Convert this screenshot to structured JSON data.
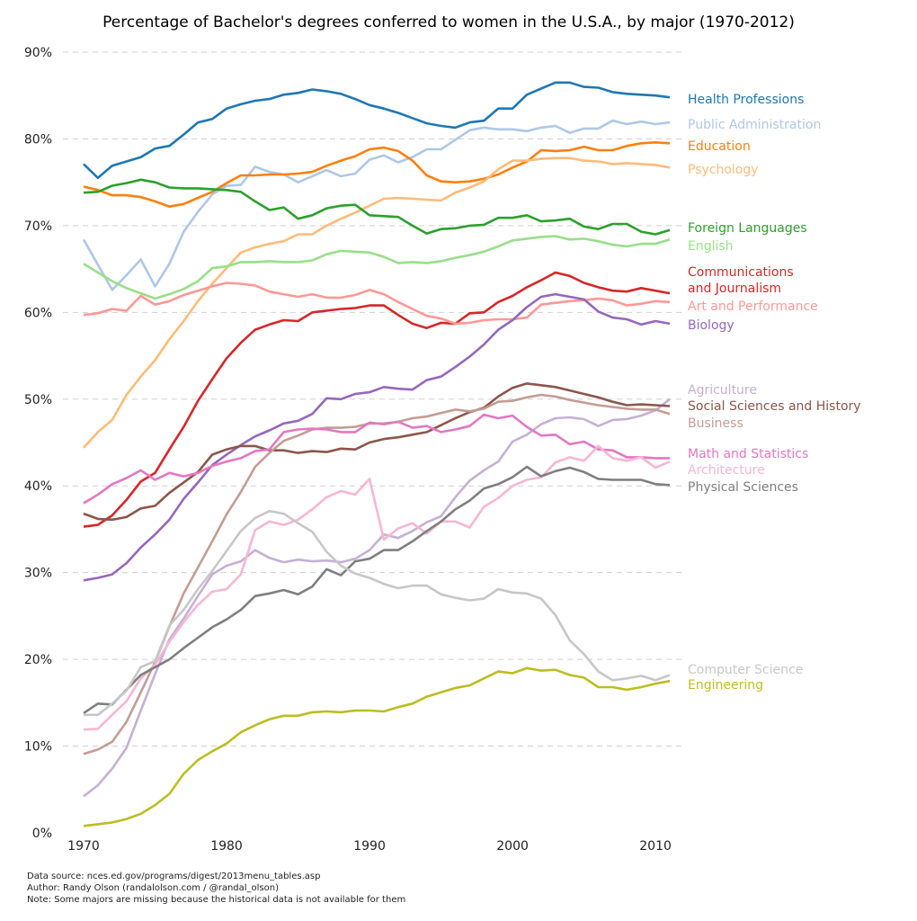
{
  "chart_data": {
    "type": "line",
    "title": "Percentage of Bachelor's degrees conferred to women in the U.S.A., by major (1970-2012)",
    "xlabel": "",
    "ylabel": "",
    "xlim": [
      1970,
      2011
    ],
    "ylim": [
      0,
      90
    ],
    "x_ticks": [
      "1970",
      "1980",
      "1990",
      "2000",
      "2010"
    ],
    "y_ticks": [
      "0%",
      "10%",
      "20%",
      "30%",
      "40%",
      "50%",
      "60%",
      "70%",
      "80%",
      "90%"
    ],
    "grid": "horizontal dashed",
    "legend": "direct labels at right end of lines",
    "x": [
      1970,
      1971,
      1972,
      1973,
      1974,
      1975,
      1976,
      1977,
      1978,
      1979,
      1980,
      1981,
      1982,
      1983,
      1984,
      1985,
      1986,
      1987,
      1988,
      1989,
      1990,
      1991,
      1992,
      1993,
      1994,
      1995,
      1996,
      1997,
      1998,
      1999,
      2000,
      2001,
      2002,
      2003,
      2004,
      2005,
      2006,
      2007,
      2008,
      2009,
      2010,
      2011
    ],
    "series": [
      {
        "name": "Health Professions",
        "label": "Health Professions",
        "color": "#1f77b4",
        "values": [
          77.1,
          75.5,
          76.9,
          77.4,
          77.9,
          78.9,
          79.2,
          80.5,
          81.9,
          82.3,
          83.5,
          84.0,
          84.4,
          84.6,
          85.1,
          85.3,
          85.7,
          85.5,
          85.2,
          84.6,
          83.9,
          83.5,
          83.0,
          82.4,
          81.8,
          81.5,
          81.3,
          81.9,
          82.1,
          83.5,
          83.5,
          85.1,
          85.8,
          86.5,
          86.5,
          86.0,
          85.9,
          85.4,
          85.2,
          85.1,
          85.0,
          84.8
        ]
      },
      {
        "name": "Public Administration",
        "label": "Public Administration",
        "color": "#aec7e8",
        "values": [
          68.4,
          65.5,
          62.6,
          64.3,
          66.1,
          63.0,
          65.6,
          69.3,
          71.6,
          73.6,
          74.6,
          74.7,
          76.8,
          76.2,
          75.9,
          75.0,
          75.7,
          76.4,
          75.7,
          76.0,
          77.6,
          78.1,
          77.3,
          77.9,
          78.8,
          78.8,
          79.9,
          81.0,
          81.3,
          81.1,
          81.1,
          80.9,
          81.3,
          81.5,
          80.7,
          81.2,
          81.2,
          82.1,
          81.7,
          82.0,
          81.7,
          81.9
        ]
      },
      {
        "name": "Education",
        "label": "Education",
        "color": "#ff7f0e",
        "values": [
          74.5,
          74.1,
          73.5,
          73.5,
          73.3,
          72.8,
          72.2,
          72.5,
          73.2,
          73.9,
          74.9,
          75.8,
          75.8,
          75.9,
          75.9,
          76.0,
          76.2,
          76.9,
          77.5,
          78.0,
          78.8,
          79.0,
          78.6,
          77.5,
          75.8,
          75.1,
          75.0,
          75.1,
          75.4,
          75.9,
          76.7,
          77.4,
          78.7,
          78.6,
          78.7,
          79.1,
          78.7,
          78.7,
          79.2,
          79.5,
          79.6,
          79.5
        ]
      },
      {
        "name": "Psychology",
        "label": "Psychology",
        "color": "#ffbb78",
        "values": [
          44.4,
          46.2,
          47.6,
          50.5,
          52.6,
          54.5,
          56.9,
          59.0,
          61.3,
          63.3,
          65.1,
          66.9,
          67.5,
          67.9,
          68.2,
          69.0,
          69.0,
          70.0,
          70.8,
          71.5,
          72.3,
          73.1,
          73.2,
          73.1,
          73.0,
          72.9,
          73.8,
          74.4,
          75.1,
          76.5,
          77.5,
          77.5,
          77.7,
          77.8,
          77.8,
          77.5,
          77.4,
          77.1,
          77.2,
          77.1,
          77.0,
          76.7
        ]
      },
      {
        "name": "Foreign Languages",
        "label": "Foreign Languages",
        "color": "#2ca02c",
        "values": [
          73.8,
          73.9,
          74.6,
          74.9,
          75.3,
          75.0,
          74.4,
          74.3,
          74.3,
          74.2,
          74.1,
          73.9,
          72.8,
          71.8,
          72.1,
          70.8,
          71.2,
          72.0,
          72.3,
          72.4,
          71.2,
          71.1,
          71.0,
          70.0,
          69.1,
          69.6,
          69.7,
          70.0,
          70.1,
          70.9,
          70.9,
          71.2,
          70.5,
          70.6,
          70.8,
          69.9,
          69.6,
          70.2,
          70.2,
          69.3,
          69.0,
          69.5
        ]
      },
      {
        "name": "English",
        "label": "English",
        "color": "#98df8a",
        "values": [
          65.6,
          64.6,
          63.6,
          62.8,
          62.2,
          61.6,
          62.1,
          62.7,
          63.6,
          65.1,
          65.3,
          65.8,
          65.8,
          65.9,
          65.8,
          65.8,
          66.0,
          66.7,
          67.1,
          67.0,
          66.9,
          66.4,
          65.7,
          65.8,
          65.7,
          65.9,
          66.3,
          66.6,
          67.0,
          67.6,
          68.3,
          68.5,
          68.7,
          68.8,
          68.4,
          68.5,
          68.2,
          67.8,
          67.6,
          67.9,
          67.9,
          68.4
        ]
      },
      {
        "name": "Communications and Journalism",
        "label": "Communications\nand Journalism",
        "color": "#d62728",
        "values": [
          35.3,
          35.5,
          36.6,
          38.4,
          40.5,
          41.5,
          44.2,
          46.8,
          49.8,
          52.3,
          54.7,
          56.5,
          58.0,
          58.6,
          59.1,
          59.0,
          60.0,
          60.2,
          60.4,
          60.5,
          60.8,
          60.8,
          59.7,
          58.7,
          58.2,
          58.8,
          58.7,
          59.9,
          60.0,
          61.2,
          61.9,
          62.9,
          63.7,
          64.6,
          64.2,
          63.4,
          62.9,
          62.5,
          62.4,
          62.8,
          62.5,
          62.2
        ]
      },
      {
        "name": "Art and Performance",
        "label": "Art and Performance",
        "color": "#ff9896",
        "values": [
          59.7,
          59.9,
          60.4,
          60.2,
          61.9,
          60.9,
          61.3,
          62.0,
          62.5,
          63.0,
          63.4,
          63.3,
          63.1,
          62.4,
          62.1,
          61.8,
          62.1,
          61.7,
          61.7,
          62.0,
          62.6,
          62.1,
          61.2,
          60.4,
          59.6,
          59.3,
          58.7,
          58.8,
          59.1,
          59.2,
          59.2,
          59.4,
          60.9,
          61.1,
          61.3,
          61.4,
          61.6,
          61.4,
          60.8,
          61.0,
          61.3,
          61.2
        ]
      },
      {
        "name": "Biology",
        "label": "Biology",
        "color": "#9467bd",
        "values": [
          29.1,
          29.4,
          29.8,
          31.1,
          32.9,
          34.4,
          36.1,
          38.5,
          40.4,
          42.4,
          43.6,
          44.7,
          45.7,
          46.4,
          47.2,
          47.5,
          48.3,
          50.1,
          50.0,
          50.6,
          50.8,
          51.4,
          51.2,
          51.1,
          52.2,
          52.6,
          53.7,
          54.9,
          56.3,
          58.0,
          59.1,
          60.6,
          61.8,
          62.1,
          61.8,
          61.5,
          60.1,
          59.4,
          59.2,
          58.6,
          59.0,
          58.7
        ]
      },
      {
        "name": "Agriculture",
        "label": "Agriculture",
        "color": "#c5b0d5",
        "values": [
          4.2,
          5.5,
          7.4,
          9.8,
          14.1,
          18.3,
          22.3,
          24.7,
          27.3,
          29.8,
          30.8,
          31.3,
          32.6,
          31.7,
          31.2,
          31.5,
          31.3,
          31.4,
          31.2,
          31.6,
          32.6,
          34.4,
          34.0,
          34.8,
          35.8,
          36.5,
          38.7,
          40.6,
          41.8,
          42.8,
          45.1,
          45.9,
          47.1,
          47.8,
          47.9,
          47.7,
          46.9,
          47.6,
          47.7,
          48.1,
          48.7,
          50.0
        ]
      },
      {
        "name": "Social Sciences and History",
        "label": "Social Sciences and History",
        "color": "#8c564b",
        "values": [
          36.8,
          36.2,
          36.1,
          36.4,
          37.4,
          37.7,
          39.2,
          40.4,
          41.6,
          43.6,
          44.2,
          44.6,
          44.6,
          44.1,
          44.1,
          43.8,
          44.0,
          43.9,
          44.3,
          44.2,
          45.0,
          45.4,
          45.6,
          45.9,
          46.2,
          47.0,
          47.8,
          48.5,
          49.0,
          50.3,
          51.3,
          51.8,
          51.6,
          51.4,
          51.0,
          50.6,
          50.2,
          49.7,
          49.3,
          49.4,
          49.3,
          49.2
        ]
      },
      {
        "name": "Business",
        "label": "Business",
        "color": "#c49c94",
        "values": [
          9.1,
          9.6,
          10.5,
          12.8,
          16.2,
          19.7,
          23.8,
          27.6,
          30.6,
          33.6,
          36.7,
          39.3,
          42.2,
          43.8,
          45.2,
          45.8,
          46.5,
          46.7,
          46.7,
          46.8,
          47.2,
          47.2,
          47.4,
          47.8,
          48.0,
          48.4,
          48.8,
          48.6,
          48.9,
          49.7,
          49.8,
          50.2,
          50.5,
          50.3,
          49.9,
          49.6,
          49.3,
          49.1,
          48.9,
          48.8,
          48.8,
          48.3
        ]
      },
      {
        "name": "Math and Statistics",
        "label": "Math and Statistics",
        "color": "#e377c2",
        "values": [
          38.0,
          39.0,
          40.2,
          40.9,
          41.8,
          40.7,
          41.5,
          41.1,
          41.5,
          42.3,
          42.8,
          43.2,
          44.0,
          44.2,
          46.2,
          46.5,
          46.6,
          46.5,
          46.2,
          46.2,
          47.3,
          47.1,
          47.4,
          46.7,
          46.9,
          46.2,
          46.5,
          46.9,
          48.2,
          47.8,
          48.1,
          46.8,
          45.8,
          45.9,
          44.8,
          45.1,
          44.2,
          44.1,
          43.3,
          43.3,
          43.2,
          43.2
        ]
      },
      {
        "name": "Architecture",
        "label": "Architecture",
        "color": "#f7b6d2",
        "values": [
          11.9,
          12.0,
          13.6,
          15.2,
          17.8,
          19.4,
          22.0,
          24.3,
          26.3,
          27.8,
          28.1,
          29.8,
          34.9,
          35.9,
          35.5,
          36.1,
          37.3,
          38.7,
          39.4,
          39.0,
          40.8,
          33.8,
          35.1,
          35.7,
          34.5,
          35.9,
          35.9,
          35.2,
          37.6,
          38.6,
          40.0,
          40.7,
          41.0,
          42.7,
          43.3,
          42.9,
          44.6,
          43.2,
          42.9,
          43.3,
          42.1,
          42.8
        ]
      },
      {
        "name": "Physical Sciences",
        "label": "Physical Sciences",
        "color": "#7f7f7f",
        "values": [
          13.8,
          14.9,
          14.8,
          16.5,
          18.2,
          19.1,
          20.0,
          21.3,
          22.5,
          23.7,
          24.6,
          25.7,
          27.3,
          27.6,
          28.0,
          27.5,
          28.4,
          30.4,
          29.7,
          31.3,
          31.6,
          32.6,
          32.6,
          33.6,
          34.8,
          35.9,
          37.3,
          38.3,
          39.7,
          40.2,
          41.0,
          42.2,
          41.1,
          41.7,
          42.1,
          41.6,
          40.8,
          40.7,
          40.7,
          40.7,
          40.2,
          40.1
        ]
      },
      {
        "name": "Computer Science",
        "label": "Computer Science",
        "color": "#c7c7c7",
        "values": [
          13.6,
          13.6,
          14.9,
          16.4,
          19.1,
          19.8,
          23.9,
          25.7,
          28.1,
          30.2,
          32.5,
          34.8,
          36.3,
          37.1,
          36.8,
          35.7,
          34.7,
          32.4,
          30.8,
          29.9,
          29.4,
          28.7,
          28.2,
          28.5,
          28.5,
          27.5,
          27.1,
          26.8,
          27.0,
          28.1,
          27.7,
          27.6,
          27.0,
          25.1,
          22.2,
          20.6,
          18.6,
          17.6,
          17.8,
          18.1,
          17.6,
          18.2
        ]
      },
      {
        "name": "Engineering",
        "label": "Engineering",
        "color": "#bcbd22",
        "values": [
          0.8,
          1.0,
          1.2,
          1.6,
          2.2,
          3.2,
          4.5,
          6.8,
          8.4,
          9.4,
          10.3,
          11.6,
          12.4,
          13.1,
          13.5,
          13.5,
          13.9,
          14.0,
          13.9,
          14.1,
          14.1,
          14.0,
          14.5,
          14.9,
          15.7,
          16.2,
          16.7,
          17.0,
          17.8,
          18.6,
          18.4,
          19.0,
          18.7,
          18.8,
          18.2,
          17.9,
          16.8,
          16.8,
          16.5,
          16.8,
          17.2,
          17.5
        ]
      }
    ],
    "annotations": [
      "Data source: nces.ed.gov/programs/digest/2013menu_tables.asp",
      "Author: Randy Olson (randalolson.com / @randal_olson)",
      "Note: Some majors are missing because the historical data is not available for them"
    ]
  }
}
